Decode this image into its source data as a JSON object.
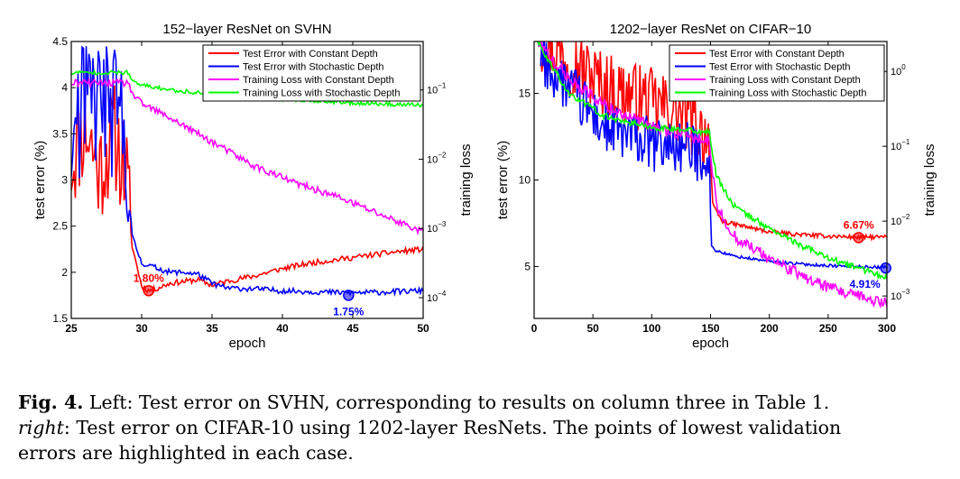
{
  "chart_data": [
    {
      "type": "line",
      "title": "152−layer ResNet on SVHN",
      "xlabel": "epoch",
      "ylabel": "test error (%)",
      "ylabel_right": "training loss",
      "xlim": [
        25,
        50
      ],
      "ylim": [
        1.5,
        4.5
      ],
      "y2_log_range": [
        -4.3,
        -0.3
      ],
      "xticks": [
        25,
        30,
        35,
        40,
        45,
        50
      ],
      "xtick_labels": [
        "25",
        "30",
        "35",
        "40",
        "45",
        "50"
      ],
      "yticks": [
        1.5,
        2,
        2.5,
        3,
        3.5,
        4,
        4.5
      ],
      "ytick_labels": [
        "1.5",
        "2",
        "2.5",
        "3",
        "3.5",
        "4",
        "4.5"
      ],
      "y2ticks": [
        -4,
        -3,
        -2,
        -1
      ],
      "y2tick_labels": [
        "10",
        "10",
        "10",
        "10"
      ],
      "y2tick_exponents": [
        "−4",
        "−3",
        "−2",
        "−1"
      ],
      "legend_position": "top-right",
      "series": [
        {
          "name": "Test Error with Constant Depth",
          "color": "#ff0000",
          "axis": "left",
          "x": [
            25,
            26,
            27,
            28,
            28.9,
            29.3,
            30,
            30.5,
            31,
            32,
            33,
            34,
            35,
            36,
            38,
            40,
            42,
            44,
            46,
            48,
            50
          ],
          "y": [
            3.2,
            3.6,
            3.1,
            3.5,
            3.1,
            2.3,
            1.85,
            1.8,
            1.82,
            1.88,
            1.9,
            1.92,
            1.86,
            1.9,
            1.96,
            2.04,
            2.1,
            2.14,
            2.18,
            2.22,
            2.25
          ],
          "noise": 0.03,
          "noise_early": 0.6
        },
        {
          "name": "Test Error with Stochastic Depth",
          "color": "#0000ff",
          "axis": "left",
          "x": [
            25,
            26,
            27,
            28,
            28.9,
            29.3,
            30,
            31,
            32,
            33,
            34,
            35,
            36,
            38,
            40,
            42,
            44,
            46,
            48,
            50
          ],
          "y": [
            3.4,
            3.8,
            3.9,
            3.7,
            3.5,
            2.4,
            2.1,
            2.05,
            2.0,
            2.0,
            1.98,
            1.88,
            1.83,
            1.82,
            1.8,
            1.79,
            1.78,
            1.78,
            1.79,
            1.8
          ],
          "noise": 0.03,
          "noise_early": 0.75
        },
        {
          "name": "Training Loss with Constant Depth",
          "color": "#ff00ff",
          "axis": "right",
          "x": [
            25,
            29,
            29.5,
            30,
            32,
            35,
            38,
            41,
            44,
            47,
            50
          ],
          "y": [
            -0.9,
            -0.9,
            -1.1,
            -1.2,
            -1.4,
            -1.75,
            -2.1,
            -2.35,
            -2.55,
            -2.8,
            -3.05
          ],
          "noise": 0.05
        },
        {
          "name": "Training Loss with Stochastic Depth",
          "color": "#00ff00",
          "axis": "right",
          "x": [
            25,
            29,
            29.5,
            30,
            32,
            35,
            38,
            41,
            44,
            47,
            50
          ],
          "y": [
            -0.75,
            -0.75,
            -0.9,
            -0.93,
            -1.0,
            -1.06,
            -1.1,
            -1.14,
            -1.18,
            -1.2,
            -1.22
          ],
          "noise": 0.03
        }
      ],
      "highlights": [
        {
          "x": 30.5,
          "y": 1.8,
          "color": "#ff0000",
          "label": "1.80%",
          "label_side": "above"
        },
        {
          "x": 44.7,
          "y": 1.75,
          "color": "#0000ff",
          "label": "1.75%",
          "label_side": "below"
        }
      ]
    },
    {
      "type": "line",
      "title": "1202−layer ResNet on CIFAR−10",
      "xlabel": "epoch",
      "ylabel": "test error (%)",
      "ylabel_right": "training loss",
      "xlim": [
        0,
        300
      ],
      "ylim": [
        2,
        18
      ],
      "y2_log_range": [
        -3.3,
        0.4
      ],
      "xticks": [
        0,
        50,
        100,
        150,
        200,
        250,
        300
      ],
      "xtick_labels": [
        "0",
        "50",
        "100",
        "150",
        "200",
        "250",
        "300"
      ],
      "yticks": [
        5,
        10,
        15
      ],
      "ytick_labels": [
        "5",
        "10",
        "15"
      ],
      "y2ticks": [
        -3,
        -2,
        -1,
        0
      ],
      "y2tick_labels": [
        "10",
        "10",
        "10",
        "10"
      ],
      "y2tick_exponents": [
        "−3",
        "−2",
        "−1",
        "0"
      ],
      "legend_position": "top-right",
      "series": [
        {
          "name": "Test Error with Constant Depth",
          "color": "#ff0000",
          "axis": "left",
          "x": [
            5,
            20,
            40,
            60,
            80,
            100,
            120,
            140,
            149,
            152,
            160,
            180,
            200,
            225,
            250,
            275,
            300
          ],
          "y": [
            18,
            17.5,
            16.5,
            15.5,
            15,
            14.5,
            14,
            13,
            12.5,
            8.5,
            7.6,
            7.3,
            7.0,
            6.85,
            6.75,
            6.7,
            6.7
          ],
          "noise": 0.12,
          "noise_early": 2.0
        },
        {
          "name": "Test Error with Stochastic Depth",
          "color": "#0000ff",
          "axis": "left",
          "x": [
            5,
            20,
            40,
            60,
            80,
            100,
            120,
            140,
            149,
            150.5,
            155,
            170,
            200,
            225,
            250,
            275,
            300
          ],
          "y": [
            17,
            16,
            14.5,
            13,
            12.5,
            12,
            12,
            11.5,
            11.5,
            6.2,
            5.9,
            5.6,
            5.3,
            5.15,
            5.05,
            5.0,
            4.95
          ],
          "noise": 0.08,
          "noise_early": 1.6
        },
        {
          "name": "Training Loss with Constant Depth",
          "color": "#ff00ff",
          "axis": "right",
          "x": [
            0,
            10,
            30,
            60,
            100,
            140,
            149,
            155,
            170,
            200,
            230,
            260,
            300
          ],
          "y": [
            0.5,
            0.25,
            -0.1,
            -0.45,
            -0.75,
            -0.9,
            -0.95,
            -1.8,
            -2.2,
            -2.5,
            -2.75,
            -2.95,
            -3.1
          ],
          "noise": 0.08
        },
        {
          "name": "Training Loss with Stochastic Depth",
          "color": "#00ff00",
          "axis": "right",
          "x": [
            0,
            10,
            30,
            60,
            100,
            140,
            149,
            155,
            170,
            200,
            230,
            260,
            300
          ],
          "y": [
            0.5,
            0.2,
            -0.3,
            -0.6,
            -0.75,
            -0.8,
            -0.82,
            -1.4,
            -1.8,
            -2.1,
            -2.35,
            -2.55,
            -2.75
          ],
          "noise": 0.04
        }
      ],
      "highlights": [
        {
          "x": 276,
          "y": 6.67,
          "color": "#ff0000",
          "label": "6.67%",
          "label_side": "above"
        },
        {
          "x": 299,
          "y": 4.91,
          "color": "#0000ff",
          "label": "4.91%",
          "label_side": "below"
        }
      ]
    }
  ],
  "caption": {
    "fig_label": "Fig. 4.",
    "line1": " Left: Test error on SVHN, corresponding to results on column three in Table 1.",
    "right_word": "right",
    "line2_rest": ": Test error on CIFAR-10 using 1202-layer ResNets. The points of lowest validation",
    "line3": "errors are highlighted in each case."
  }
}
